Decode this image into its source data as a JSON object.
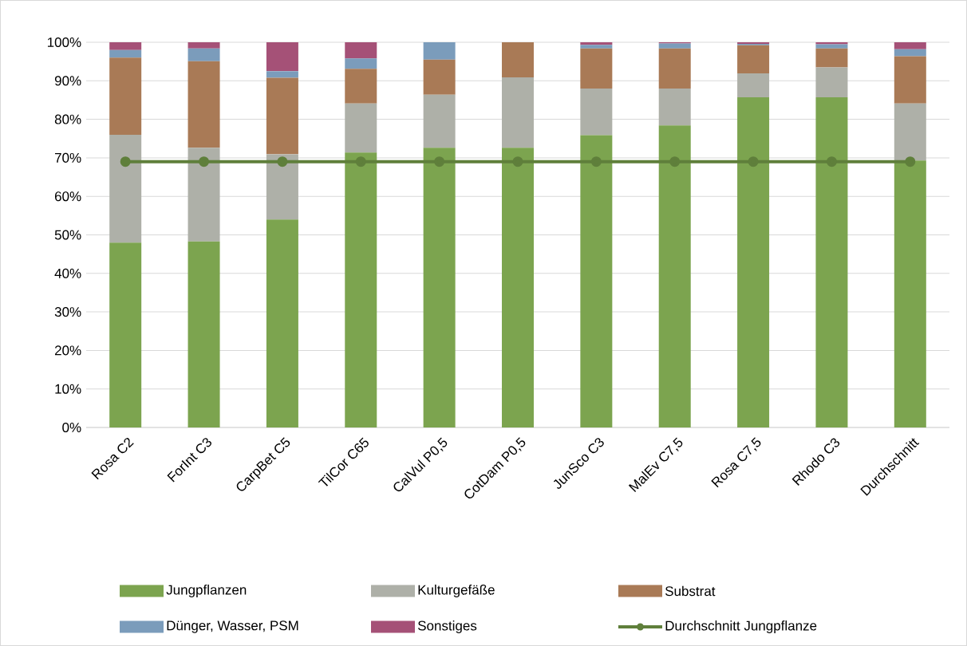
{
  "chart_data": {
    "type": "bar",
    "stacked": true,
    "categories": [
      "Rosa C2",
      "ForInt C3",
      "CarpBet C5",
      "TilCor C65",
      "CalVul P0,5",
      "CotDam P0,5",
      "JunSco C3",
      "MalEv C7,5",
      "Rosa C7,5",
      "Rhodo C3",
      "Durchschnitt"
    ],
    "series": [
      {
        "name": "Jungpflanzen",
        "color": "#7ca44f",
        "values": [
          48,
          48.3,
          54,
          71.4,
          72.6,
          72.6,
          75.9,
          78.4,
          85.7,
          85.7,
          69.3
        ]
      },
      {
        "name": "Kulturgefäße",
        "color": "#aeb0a8",
        "values": [
          28,
          24.3,
          16.9,
          12.7,
          13.8,
          18.3,
          12.1,
          9.6,
          6.2,
          7.8,
          14.8
        ]
      },
      {
        "name": "Substrat",
        "color": "#a97a56",
        "values": [
          20,
          22.5,
          19.9,
          9,
          9.1,
          9.1,
          10.4,
          10.4,
          7.3,
          4.9,
          12.3
        ]
      },
      {
        "name": "Dünger, Wasser, PSM",
        "color": "#7b9cbb",
        "values": [
          2,
          3.3,
          1.7,
          2.7,
          4.5,
          0,
          0.9,
          1.3,
          0.4,
          1.1,
          1.8
        ]
      },
      {
        "name": "Sonstiges",
        "color": "#a55177",
        "values": [
          2,
          1.6,
          7.5,
          4.2,
          0,
          0,
          0.7,
          0.3,
          0.4,
          0.5,
          1.8
        ]
      },
      {
        "name": "Durchschnitt Jungpflanze",
        "type": "line",
        "color": "#5f7f3b",
        "marker": "circle",
        "values": [
          69,
          69,
          69,
          69,
          69,
          69,
          69,
          69,
          69,
          69,
          69
        ]
      }
    ],
    "ylim": [
      0,
      100
    ],
    "yticks": [
      {
        "value": 0,
        "label": "0%"
      },
      {
        "value": 10,
        "label": "10%"
      },
      {
        "value": 20,
        "label": "20%"
      },
      {
        "value": 30,
        "label": "30%"
      },
      {
        "value": 40,
        "label": "40%"
      },
      {
        "value": 50,
        "label": "50%"
      },
      {
        "value": 60,
        "label": "60%"
      },
      {
        "value": 70,
        "label": "70%"
      },
      {
        "value": 80,
        "label": "80%"
      },
      {
        "value": 90,
        "label": "90%"
      },
      {
        "value": 100,
        "label": "100%"
      }
    ],
    "grid": "y",
    "legend": "bottom"
  }
}
